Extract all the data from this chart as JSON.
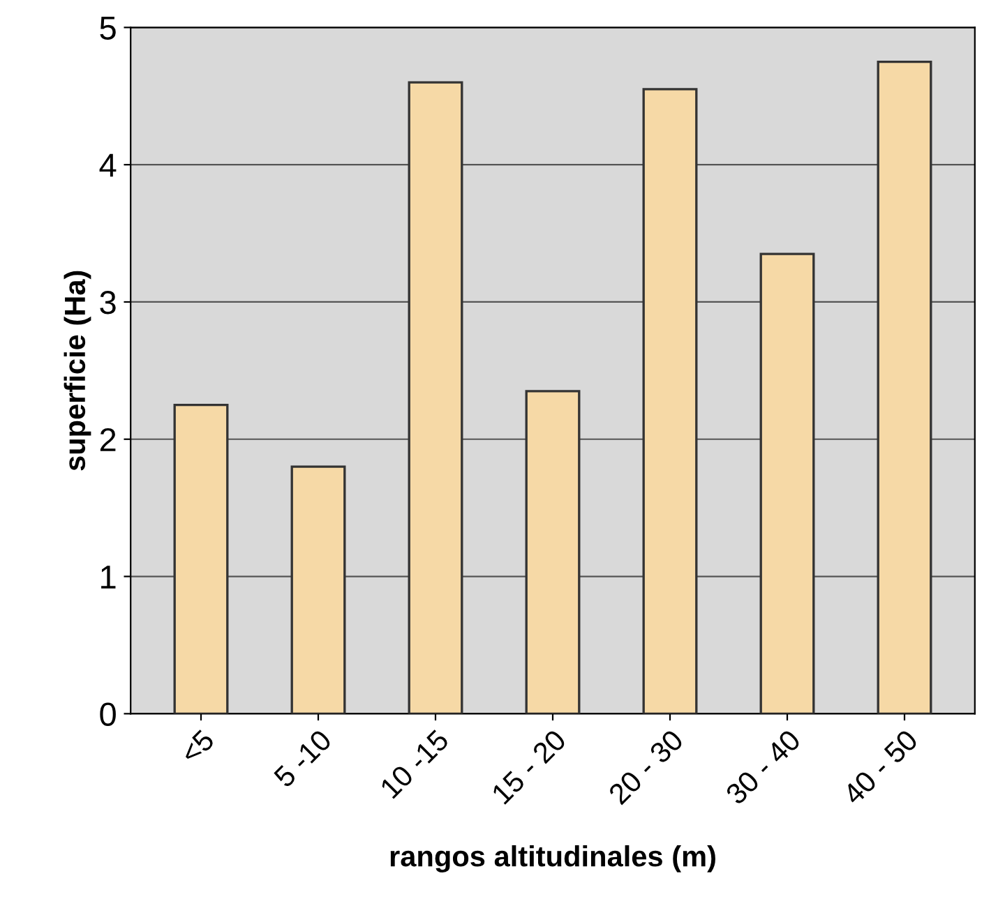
{
  "chart_data": {
    "type": "bar",
    "xlabel": "rangos altitudinales (m)",
    "ylabel": "superficie (Ha)",
    "categories": [
      "<5",
      "5 -10",
      "10 -15",
      "15 - 20",
      "20 - 30",
      "30 - 40",
      "40 - 50"
    ],
    "values": [
      2.25,
      1.8,
      4.6,
      2.35,
      4.55,
      3.35,
      4.75
    ],
    "color": "#f6d9a6",
    "ylim": [
      0,
      5
    ],
    "yticks": [
      0,
      1,
      2,
      3,
      4,
      5
    ],
    "grid": "y"
  }
}
